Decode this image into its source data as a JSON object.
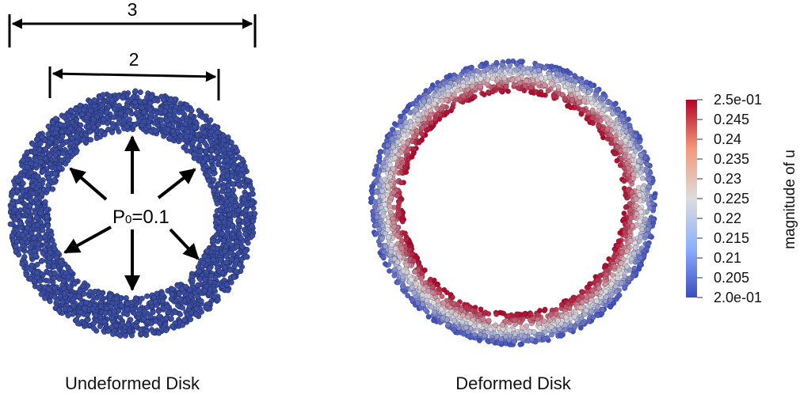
{
  "undeformed": {
    "caption": "Undeformed Disk",
    "outer_dim_label": "3",
    "inner_dim_label": "2",
    "pressure_symbol": "P",
    "pressure_subscript": "0",
    "pressure_value": "=0.1",
    "particle_color": "#3a4d9e"
  },
  "deformed": {
    "caption": "Deformed Disk"
  },
  "colorbar": {
    "title": "magnitude of u",
    "min": 0.2,
    "max": 0.25,
    "labels": [
      "2.5e-01",
      "0.245",
      "0.24",
      "0.235",
      "0.23",
      "0.225",
      "0.22",
      "0.215",
      "0.21",
      "0.205",
      "2.0e-01"
    ],
    "colors": {
      "low": "#3b4cc0",
      "mid": "#dddddd",
      "high": "#b40426"
    }
  }
}
